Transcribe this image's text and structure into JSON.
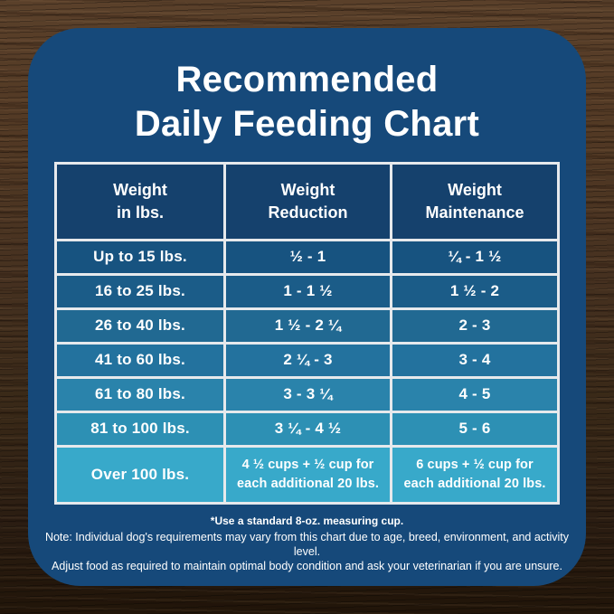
{
  "title": {
    "line1": "Recommended",
    "line2": "Daily Feeding Chart"
  },
  "table": {
    "headers": [
      {
        "line1": "Weight",
        "line2": "in lbs."
      },
      {
        "line1": "Weight",
        "line2": "Reduction"
      },
      {
        "line1": "Weight",
        "line2": "Maintenance"
      }
    ],
    "rows": [
      {
        "weight": "Up to 15 lbs.",
        "reduction": "½ - 1",
        "maintenance": "¼ - 1 ½"
      },
      {
        "weight": "16 to 25 lbs.",
        "reduction": "1 - 1 ½",
        "maintenance": "1 ½ - 2"
      },
      {
        "weight": "26 to 40 lbs.",
        "reduction": "1 ½ - 2 ¼",
        "maintenance": "2 - 3"
      },
      {
        "weight": "41 to 60 lbs.",
        "reduction": "2 ¼ - 3",
        "maintenance": "3 - 4"
      },
      {
        "weight": "61 to 80 lbs.",
        "reduction": "3 - 3 ¼",
        "maintenance": "4 - 5"
      },
      {
        "weight": "81 to 100 lbs.",
        "reduction": "3 ¼ - 4 ½",
        "maintenance": "5 - 6"
      },
      {
        "weight": "Over 100 lbs.",
        "reduction": "4 ½ cups  + ½ cup for each additional 20 lbs.",
        "maintenance": "6 cups  + ½ cup for each additional 20 lbs."
      }
    ]
  },
  "footnotes": {
    "measuring_cup": "*Use a standard 8-oz. measuring cup.",
    "note_line1": "Note: Individual dog's requirements may vary from this chart due to age, breed, environment, and activity level.",
    "note_line2": "Adjust food as required to maintain optimal body condition and ask your veterinarian if you are unsure."
  },
  "colors": {
    "panel_background": "#16497A",
    "header_cell_background": "#15416D",
    "table_border": "#E6E9EC",
    "text": "#FFFFFF",
    "row_backgrounds": [
      "#175380",
      "#1B5C88",
      "#216992",
      "#23729E",
      "#2A83AB",
      "#2D90B4",
      "#38A9CA"
    ]
  },
  "chart_data": {
    "type": "table",
    "title": "Recommended Daily Feeding Chart",
    "columns": [
      "Weight in lbs.",
      "Weight Reduction",
      "Weight Maintenance"
    ],
    "rows": [
      [
        "Up to 15 lbs.",
        "½ - 1",
        "¼ - 1 ½"
      ],
      [
        "16 to 25 lbs.",
        "1 - 1 ½",
        "1 ½ - 2"
      ],
      [
        "26 to 40 lbs.",
        "1 ½ - 2 ¼",
        "2 - 3"
      ],
      [
        "41 to 60 lbs.",
        "2 ¼ - 3",
        "3 - 4"
      ],
      [
        "61 to 80 lbs.",
        "3 - 3 ¼",
        "4 - 5"
      ],
      [
        "81 to 100 lbs.",
        "3 ¼ - 4 ½",
        "5 - 6"
      ],
      [
        "Over 100 lbs.",
        "4 ½ cups + ½ cup for each additional 20 lbs.",
        "6 cups + ½ cup for each additional 20 lbs."
      ]
    ],
    "footnote": "*Use a standard 8-oz. measuring cup."
  }
}
